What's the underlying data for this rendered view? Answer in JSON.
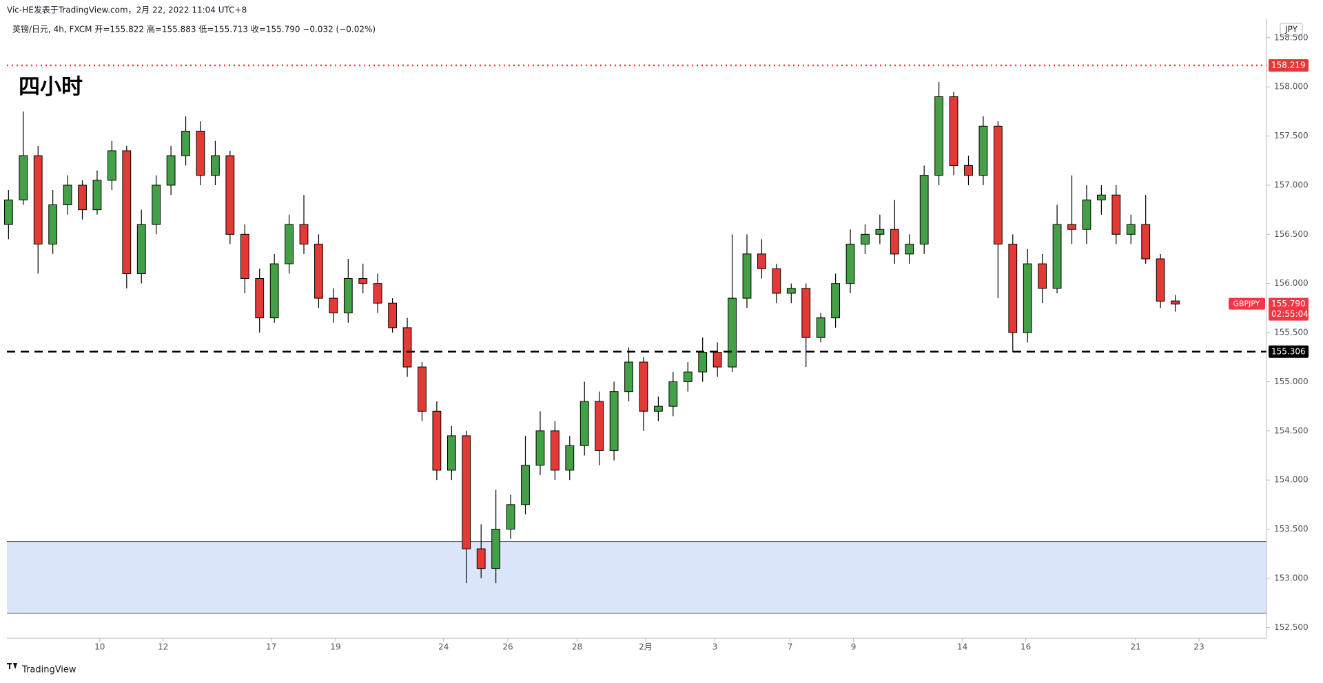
{
  "header": {
    "published": "Vic-HE发表于TradingView.com，2月 22, 2022 11:04 UTC+8",
    "footer_brand": "TradingView"
  },
  "chart_data": {
    "type": "candlestick",
    "title": "四小时",
    "symbol_info": "英镑/日元, 4h, FXCM  开=155.822  高=155.883  低=155.713  收=155.790  −0.032 (−0.02%)",
    "currency": "JPY",
    "up_color": "#43a047",
    "down_color": "#e53935",
    "open": [
      156.6,
      156.85,
      157.3,
      156.4,
      156.8,
      157.0,
      156.75,
      157.05,
      157.35,
      156.1,
      156.6,
      157.0,
      157.3,
      157.55,
      157.1,
      157.3,
      156.5,
      156.05,
      155.65,
      156.2,
      156.6,
      156.4,
      155.85,
      155.7,
      156.05,
      156.0,
      155.8,
      155.55,
      155.15,
      154.7,
      154.1,
      154.45,
      153.3,
      153.1,
      153.5,
      153.75,
      154.15,
      154.5,
      154.1,
      154.35,
      154.8,
      154.3,
      154.9,
      155.2,
      154.7,
      154.75,
      155.0,
      155.1,
      155.3,
      155.15,
      155.85,
      156.3,
      156.15,
      155.9,
      155.95,
      155.45,
      155.65,
      156.0,
      156.4,
      156.5,
      156.55,
      156.3,
      156.4,
      157.1,
      157.9,
      157.2,
      157.1,
      157.6,
      156.4,
      155.5,
      156.2,
      155.95,
      156.6,
      156.55,
      156.85,
      156.9,
      156.5,
      156.6,
      156.25,
      155.822
    ],
    "high": [
      156.95,
      157.75,
      157.4,
      156.95,
      157.1,
      157.05,
      157.15,
      157.45,
      157.4,
      156.75,
      157.1,
      157.4,
      157.7,
      157.65,
      157.45,
      157.35,
      156.6,
      156.15,
      156.3,
      156.7,
      156.9,
      156.5,
      155.95,
      156.25,
      156.2,
      156.1,
      155.85,
      155.65,
      155.2,
      154.8,
      154.55,
      154.5,
      153.55,
      153.9,
      153.85,
      154.45,
      154.7,
      154.6,
      154.45,
      155.0,
      154.9,
      155.0,
      155.35,
      155.25,
      154.85,
      155.1,
      155.2,
      155.45,
      155.4,
      156.5,
      156.5,
      156.45,
      156.2,
      156.0,
      156.0,
      155.7,
      156.1,
      156.55,
      156.6,
      156.7,
      156.85,
      156.5,
      157.2,
      158.05,
      157.95,
      157.3,
      157.7,
      157.65,
      156.5,
      156.35,
      156.3,
      156.8,
      157.1,
      157.0,
      157.0,
      157.0,
      156.7,
      156.9,
      156.3,
      155.883
    ],
    "low": [
      156.45,
      156.8,
      156.1,
      156.3,
      156.7,
      156.65,
      156.7,
      156.95,
      155.95,
      156.0,
      156.5,
      156.9,
      157.2,
      157.0,
      157.0,
      156.4,
      155.9,
      155.5,
      155.6,
      156.1,
      156.3,
      155.75,
      155.6,
      155.6,
      155.9,
      155.7,
      155.5,
      155.05,
      154.6,
      154.0,
      154.0,
      152.95,
      153.0,
      152.95,
      153.4,
      153.65,
      154.05,
      154.0,
      154.0,
      154.25,
      154.15,
      154.2,
      154.8,
      154.5,
      154.6,
      154.65,
      154.9,
      155.0,
      155.05,
      155.1,
      155.75,
      156.05,
      155.8,
      155.8,
      155.15,
      155.4,
      155.55,
      155.9,
      156.3,
      156.4,
      156.2,
      156.2,
      156.3,
      157.0,
      157.1,
      157.0,
      157.0,
      155.85,
      155.3,
      155.4,
      155.8,
      155.9,
      156.4,
      156.4,
      156.7,
      156.4,
      156.4,
      156.2,
      155.75,
      155.713
    ],
    "close": [
      156.85,
      157.3,
      156.4,
      156.8,
      157.0,
      156.75,
      157.05,
      157.35,
      156.1,
      156.6,
      157.0,
      157.3,
      157.55,
      157.1,
      157.3,
      156.5,
      156.05,
      155.65,
      156.2,
      156.6,
      156.4,
      155.85,
      155.7,
      156.05,
      156.0,
      155.8,
      155.55,
      155.15,
      154.7,
      154.1,
      154.45,
      153.3,
      153.1,
      153.5,
      153.75,
      154.15,
      154.5,
      154.1,
      154.35,
      154.8,
      154.3,
      154.9,
      155.2,
      154.7,
      154.75,
      155.0,
      155.1,
      155.3,
      155.15,
      155.85,
      156.3,
      156.15,
      155.9,
      155.95,
      155.45,
      155.65,
      156.0,
      156.4,
      156.5,
      156.55,
      156.3,
      156.4,
      157.1,
      157.9,
      157.2,
      157.1,
      157.6,
      156.4,
      155.5,
      156.2,
      155.95,
      156.6,
      156.55,
      156.85,
      156.9,
      156.5,
      156.6,
      156.25,
      155.82,
      155.79
    ],
    "xlim": [
      -0.11,
      85.18
    ],
    "xticks": [
      {
        "value": 6.18,
        "label": "10"
      },
      {
        "value": 10.47,
        "label": "12"
      },
      {
        "value": 17.79,
        "label": "17"
      },
      {
        "value": 22.14,
        "label": "19"
      },
      {
        "value": 29.46,
        "label": "24"
      },
      {
        "value": 33.81,
        "label": "26"
      },
      {
        "value": 38.5,
        "label": "28"
      },
      {
        "value": 43.14,
        "label": "2月"
      },
      {
        "value": 47.83,
        "label": "3"
      },
      {
        "value": 52.92,
        "label": "7"
      },
      {
        "value": 57.21,
        "label": "9"
      },
      {
        "value": 64.59,
        "label": "14"
      },
      {
        "value": 68.88,
        "label": "16"
      },
      {
        "value": 76.32,
        "label": "21"
      },
      {
        "value": 80.61,
        "label": "23"
      }
    ],
    "ylim": [
      152.39,
      158.695
    ],
    "yticks": [
      {
        "value": 152.5,
        "label": "152.500"
      },
      {
        "value": 153,
        "label": "153.000"
      },
      {
        "value": 153.5,
        "label": "153.500"
      },
      {
        "value": 154,
        "label": "154.000"
      },
      {
        "value": 154.5,
        "label": "154.500"
      },
      {
        "value": 155,
        "label": "155.000"
      },
      {
        "value": 155.5,
        "label": "155.500"
      },
      {
        "value": 156,
        "label": "156.000"
      },
      {
        "value": 156.5,
        "label": "156.500"
      },
      {
        "value": 157,
        "label": "157.000"
      },
      {
        "value": 157.5,
        "label": "157.500"
      },
      {
        "value": 158,
        "label": "158.000"
      },
      {
        "value": 158.5,
        "label": "158.500"
      }
    ],
    "hlines": [
      {
        "value": 158.219,
        "color": "#e53935",
        "style": "dotted"
      },
      {
        "value": 155.306,
        "color": "#000000",
        "style": "dashed"
      }
    ],
    "zone": {
      "from": 152.644,
      "to": 153.373,
      "color": "#dbe6fb"
    },
    "price_tag": {
      "value": 155.79,
      "label": "155.790",
      "countdown": "02:55:04",
      "symbol": "GBPJPY",
      "color": "#f23645"
    }
  }
}
